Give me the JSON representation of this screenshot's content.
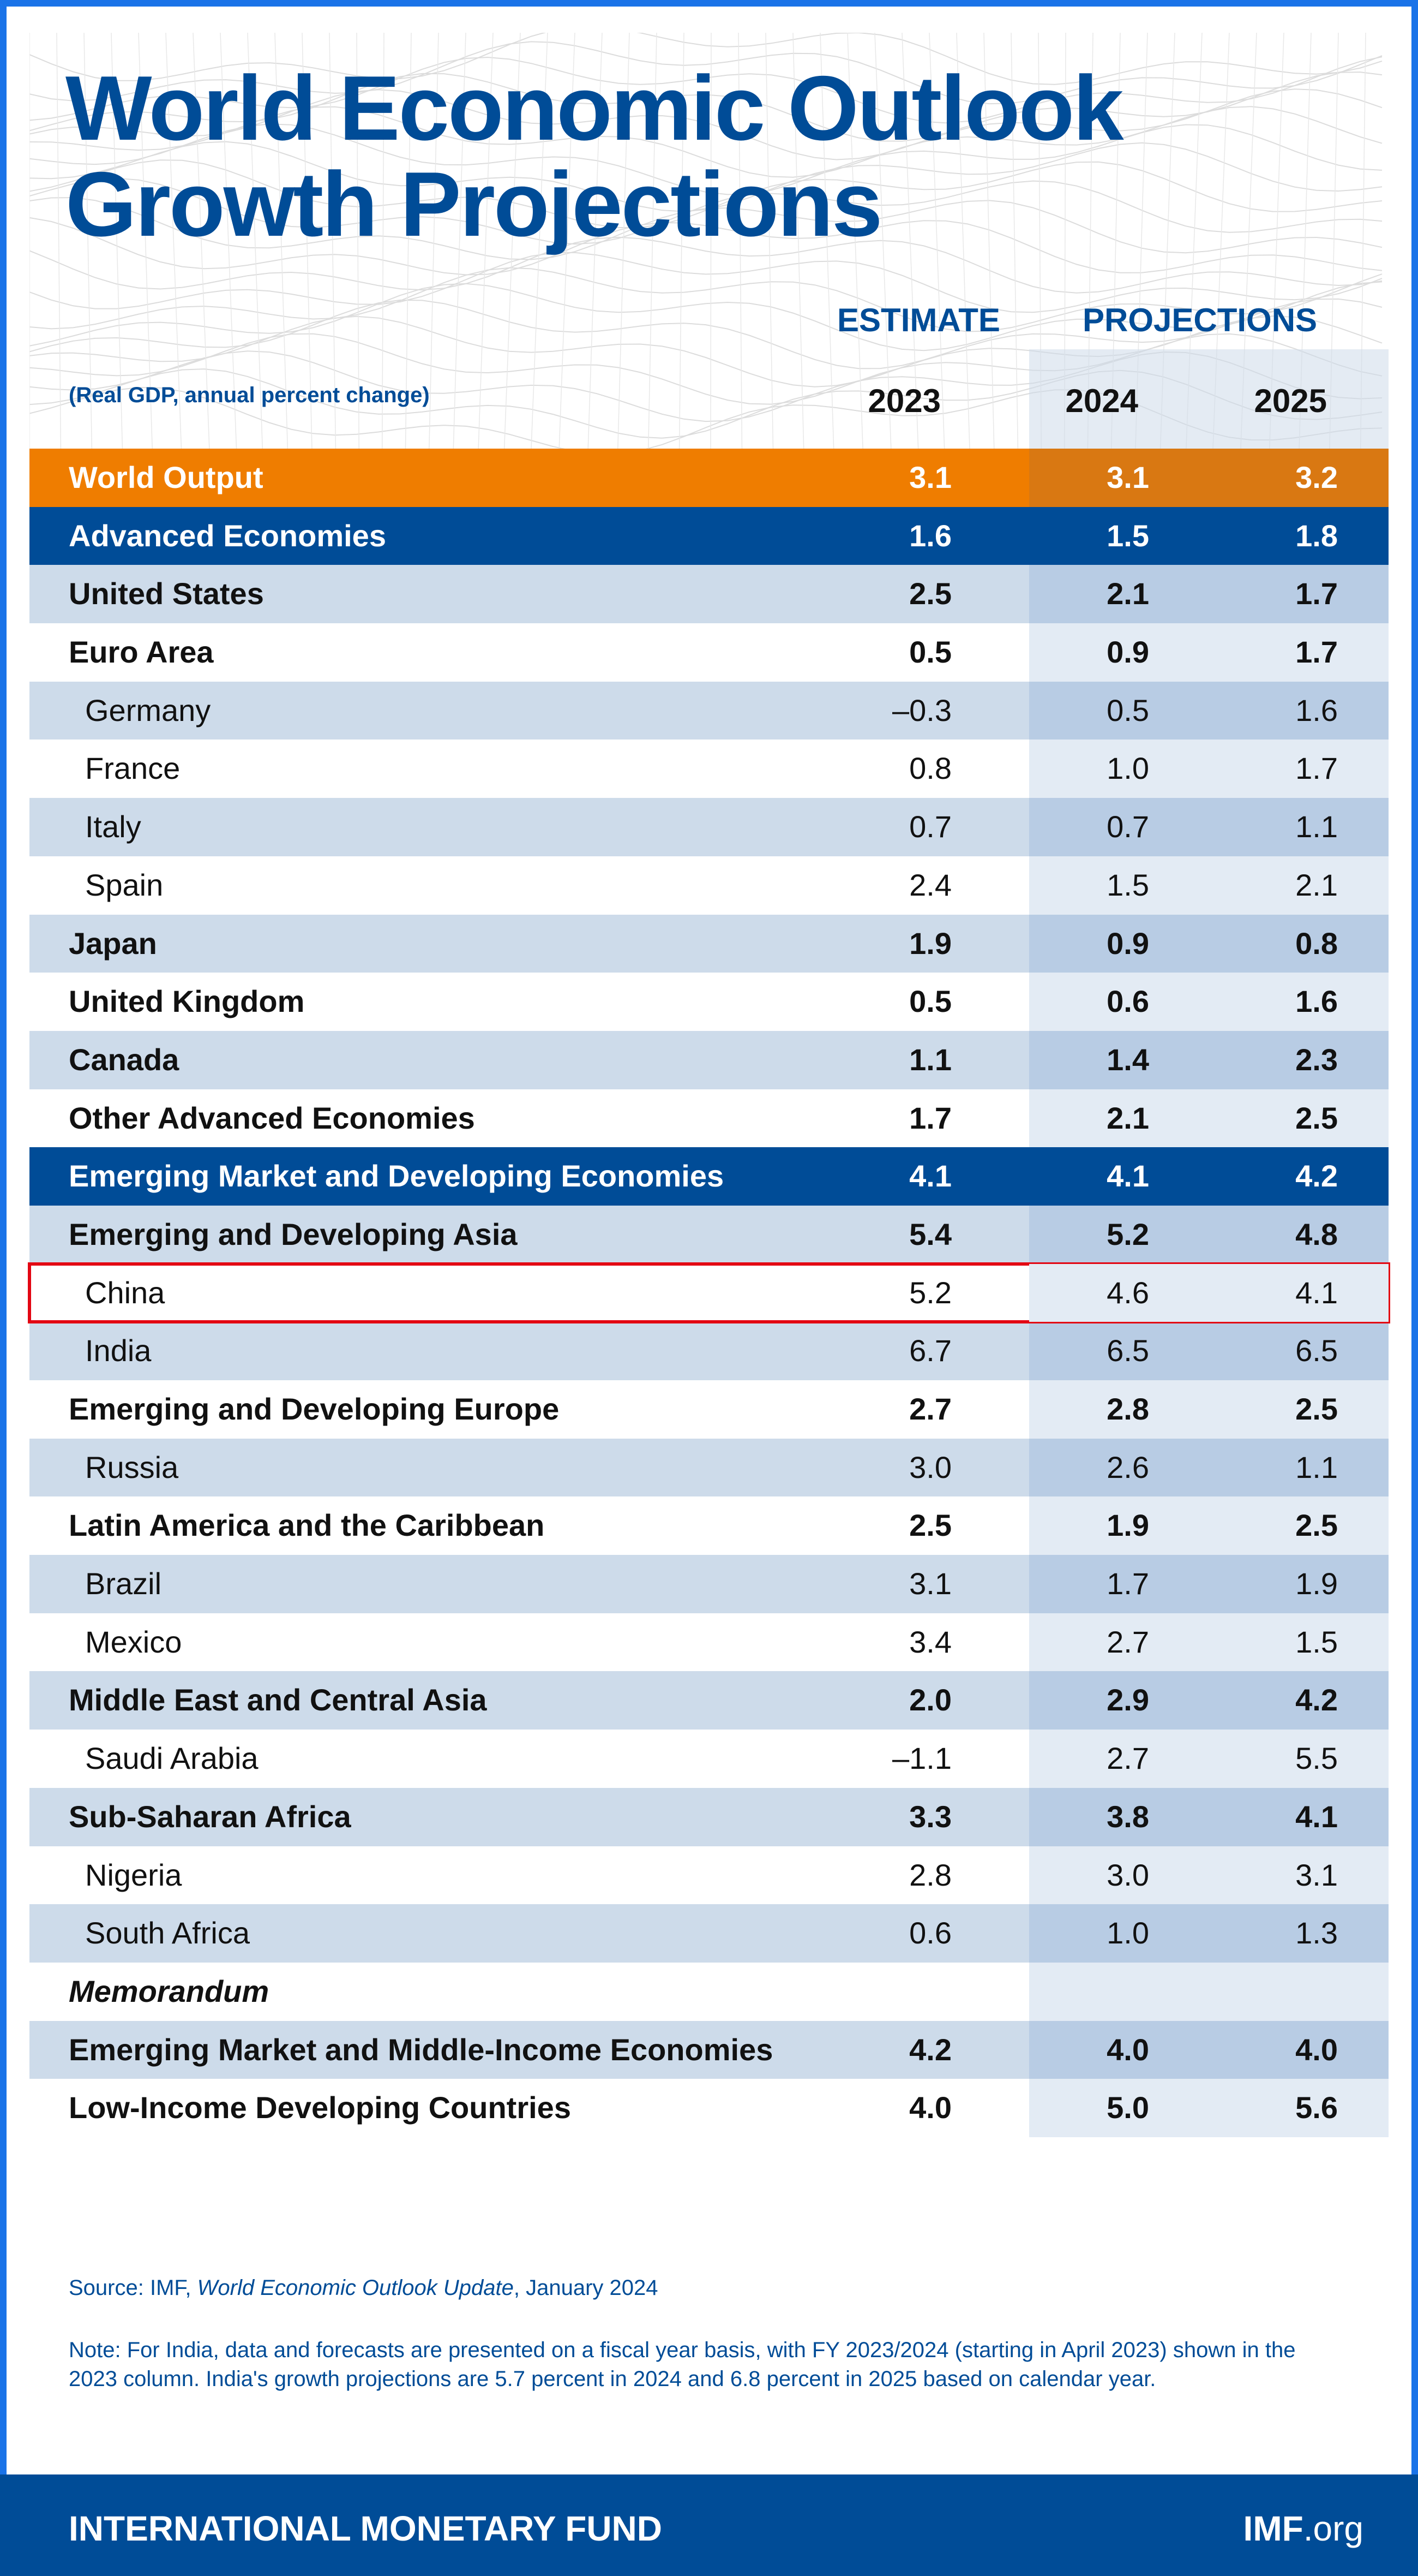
{
  "title": "World Economic Outlook Growth Projections",
  "header": {
    "estimate_label": "ESTIMATE",
    "projections_label": "PROJECTIONS",
    "units": "(Real GDP, annual percent change)",
    "years": [
      "2023",
      "2024",
      "2025"
    ]
  },
  "colors": {
    "brand_blue": "#004c97",
    "orange": "#ef7d00",
    "row_blue": "#cddbea",
    "highlight": "#e30613"
  },
  "rows": [
    {
      "label": "World Output",
      "values": [
        "3.1",
        "3.1",
        "3.2"
      ],
      "style": "orange"
    },
    {
      "label": "Advanced Economies",
      "values": [
        "1.6",
        "1.5",
        "1.8"
      ],
      "style": "dark"
    },
    {
      "label": "United States",
      "values": [
        "2.5",
        "2.1",
        "1.7"
      ],
      "style": "main"
    },
    {
      "label": "Euro Area",
      "values": [
        "0.5",
        "0.9",
        "1.7"
      ],
      "style": "main"
    },
    {
      "label": "Germany",
      "values": [
        "–0.3",
        "0.5",
        "1.6"
      ],
      "style": "sub"
    },
    {
      "label": "France",
      "values": [
        "0.8",
        "1.0",
        "1.7"
      ],
      "style": "sub"
    },
    {
      "label": "Italy",
      "values": [
        "0.7",
        "0.7",
        "1.1"
      ],
      "style": "sub"
    },
    {
      "label": "Spain",
      "values": [
        "2.4",
        "1.5",
        "2.1"
      ],
      "style": "sub"
    },
    {
      "label": "Japan",
      "values": [
        "1.9",
        "0.9",
        "0.8"
      ],
      "style": "main"
    },
    {
      "label": "United Kingdom",
      "values": [
        "0.5",
        "0.6",
        "1.6"
      ],
      "style": "main"
    },
    {
      "label": "Canada",
      "values": [
        "1.1",
        "1.4",
        "2.3"
      ],
      "style": "main"
    },
    {
      "label": "Other Advanced Economies",
      "values": [
        "1.7",
        "2.1",
        "2.5"
      ],
      "style": "main"
    },
    {
      "label": "Emerging Market and Developing Economies",
      "values": [
        "4.1",
        "4.1",
        "4.2"
      ],
      "style": "dark"
    },
    {
      "label": "Emerging and Developing Asia",
      "values": [
        "5.4",
        "5.2",
        "4.8"
      ],
      "style": "main"
    },
    {
      "label": "China",
      "values": [
        "5.2",
        "4.6",
        "4.1"
      ],
      "style": "sub",
      "highlighted": true
    },
    {
      "label": "India",
      "values": [
        "6.7",
        "6.5",
        "6.5"
      ],
      "style": "sub"
    },
    {
      "label": "Emerging and Developing Europe",
      "values": [
        "2.7",
        "2.8",
        "2.5"
      ],
      "style": "main"
    },
    {
      "label": "Russia",
      "values": [
        "3.0",
        "2.6",
        "1.1"
      ],
      "style": "sub"
    },
    {
      "label": "Latin America and the Caribbean",
      "values": [
        "2.5",
        "1.9",
        "2.5"
      ],
      "style": "main"
    },
    {
      "label": "Brazil",
      "values": [
        "3.1",
        "1.7",
        "1.9"
      ],
      "style": "sub"
    },
    {
      "label": "Mexico",
      "values": [
        "3.4",
        "2.7",
        "1.5"
      ],
      "style": "sub"
    },
    {
      "label": "Middle East and Central Asia",
      "values": [
        "2.0",
        "2.9",
        "4.2"
      ],
      "style": "main"
    },
    {
      "label": "Saudi Arabia",
      "values": [
        "–1.1",
        "2.7",
        "5.5"
      ],
      "style": "sub"
    },
    {
      "label": "Sub-Saharan Africa",
      "values": [
        "3.3",
        "3.8",
        "4.1"
      ],
      "style": "main"
    },
    {
      "label": "Nigeria",
      "values": [
        "2.8",
        "3.0",
        "3.1"
      ],
      "style": "sub"
    },
    {
      "label": "South Africa",
      "values": [
        "0.6",
        "1.0",
        "1.3"
      ],
      "style": "sub"
    },
    {
      "label": "Memorandum",
      "values": [
        "",
        "",
        ""
      ],
      "style": "memo"
    },
    {
      "label": "Emerging Market and Middle-Income Economies",
      "values": [
        "4.2",
        "4.0",
        "4.0"
      ],
      "style": "main"
    },
    {
      "label": "Low-Income Developing Countries",
      "values": [
        "4.0",
        "5.0",
        "5.6"
      ],
      "style": "main"
    }
  ],
  "source": {
    "prefix": "Source: IMF, ",
    "publication": "World Economic Outlook Update",
    "suffix": ", January 2024"
  },
  "note": "Note: For India, data and forecasts are presented on a fiscal year basis, with FY 2023/2024 (starting in April 2023) shown in the 2023 column. India's growth projections are 5.7 percent in 2024 and 6.8 percent in 2025 based on calendar year.",
  "footer": {
    "org": "INTERNATIONAL MONETARY FUND",
    "site_bold": "IMF",
    "site_rest": ".org"
  }
}
